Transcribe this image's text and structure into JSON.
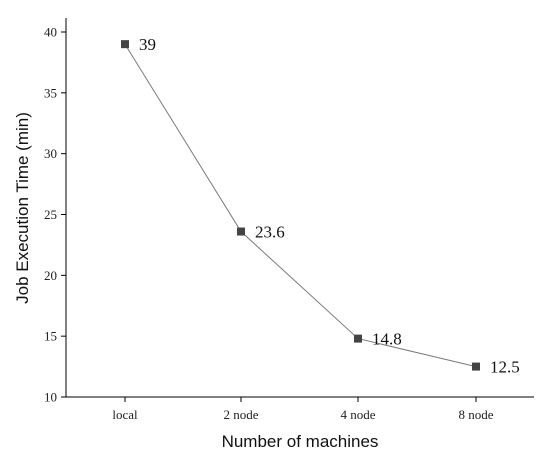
{
  "chart_data": {
    "type": "line",
    "categories": [
      "local",
      "2 node",
      "4 node",
      "8 node"
    ],
    "series": [
      {
        "values": [
          39,
          23.6,
          14.8,
          12.5
        ]
      }
    ],
    "data_labels": [
      "39",
      "23.6",
      "14.8",
      "12.5"
    ],
    "xlabel": "Number of machines",
    "ylabel": "Job Execution Time (min)",
    "ylim": [
      10,
      40
    ],
    "yticks": [
      10,
      15,
      20,
      25,
      30,
      35,
      40
    ],
    "ytick_labels": [
      "10",
      "15",
      "20",
      "25",
      "30",
      "35",
      "40"
    ],
    "grid": false,
    "colors": {
      "line": "#7a7a7a",
      "marker": "#444444"
    }
  }
}
